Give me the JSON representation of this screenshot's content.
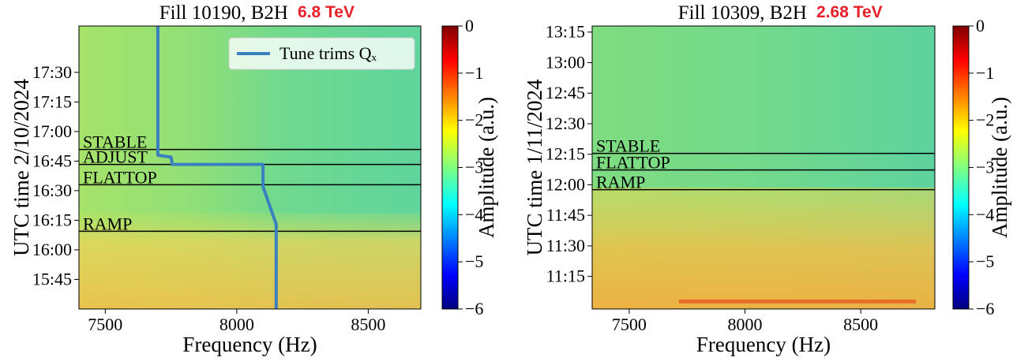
{
  "chart_data": [
    {
      "type": "spectrogram",
      "title": "Fill 10190, B2H",
      "title_note": "6.8 TeV",
      "title_note_color": "#e8202a",
      "xlabel": "Frequency (Hz)",
      "ylabel": "UTC time 2/10/2024",
      "xlim": [
        7400,
        8700
      ],
      "xticks": [
        7500,
        8000,
        8500
      ],
      "ylim": [
        930,
        1073.5
      ],
      "yticks": [
        {
          "value": 945,
          "label": "15:45"
        },
        {
          "value": 960,
          "label": "16:00"
        },
        {
          "value": 975,
          "label": "16:15"
        },
        {
          "value": 990,
          "label": "16:30"
        },
        {
          "value": 1005,
          "label": "16:45"
        },
        {
          "value": 1020,
          "label": "17:00"
        },
        {
          "value": 1035,
          "label": "17:15"
        },
        {
          "value": 1050,
          "label": "17:30"
        }
      ],
      "phases": [
        {
          "label": "STABLE",
          "y": 1010.9
        },
        {
          "label": "ADJUST",
          "y": 1003.3
        },
        {
          "label": "FLATTOP",
          "y": 993
        },
        {
          "label": "RAMP",
          "y": 969.4
        }
      ],
      "series": [
        {
          "name": "Tune trims Qₓ",
          "color": "#3a7fbf",
          "x": [
            7700,
            7700,
            7750,
            7755,
            8100,
            8100,
            8150,
            8150
          ],
          "y": [
            1073.5,
            1008,
            1007,
            1003.3,
            1003.3,
            992,
            973,
            930
          ]
        }
      ],
      "legend": "upper right",
      "colorbar": {
        "label": "Amplitude (a.u.)",
        "lim": [
          -6,
          0
        ],
        "colormap": "jet",
        "ticks": [
          0,
          {
            "value": -1,
            "label": "−1"
          },
          {
            "value": -2,
            "label": "−2"
          },
          {
            "value": -3,
            "label": "−3"
          },
          {
            "value": -4,
            "label": "−4"
          },
          {
            "value": -5,
            "label": "−5"
          },
          {
            "value": -6,
            "label": "−6"
          }
        ]
      }
    },
    {
      "type": "spectrogram",
      "title": "Fill 10309, B2H",
      "title_note": "2.68 TeV",
      "title_note_color": "#e8202a",
      "xlabel": "Frequency (Hz)",
      "ylabel": "UTC time 1/11/2024",
      "xlim": [
        7340,
        8820
      ],
      "xticks": [
        7500,
        8000,
        8500
      ],
      "ylim": [
        659,
        798
      ],
      "yticks": [
        {
          "value": 675,
          "label": "11:15"
        },
        {
          "value": 690,
          "label": "11:30"
        },
        {
          "value": 705,
          "label": "11:45"
        },
        {
          "value": 720,
          "label": "12:00"
        },
        {
          "value": 735,
          "label": "12:15"
        },
        {
          "value": 750,
          "label": "12:30"
        },
        {
          "value": 765,
          "label": "12:45"
        },
        {
          "value": 780,
          "label": "13:00"
        },
        {
          "value": 795,
          "label": "13:15"
        }
      ],
      "phases": [
        {
          "label": "STABLE",
          "y": 735.4
        },
        {
          "label": "FLATTOP",
          "y": 727.3
        },
        {
          "label": "RAMP",
          "y": 717.6
        }
      ],
      "colorbar": {
        "label": "Amplitude (a.u.)",
        "lim": [
          -6,
          0
        ],
        "colormap": "jet",
        "ticks": [
          0,
          {
            "value": -1,
            "label": "−1"
          },
          {
            "value": -2,
            "label": "−2"
          },
          {
            "value": -3,
            "label": "−3"
          },
          {
            "value": -4,
            "label": "−4"
          },
          {
            "value": -5,
            "label": "−5"
          },
          {
            "value": -6,
            "label": "−6"
          }
        ]
      }
    }
  ]
}
